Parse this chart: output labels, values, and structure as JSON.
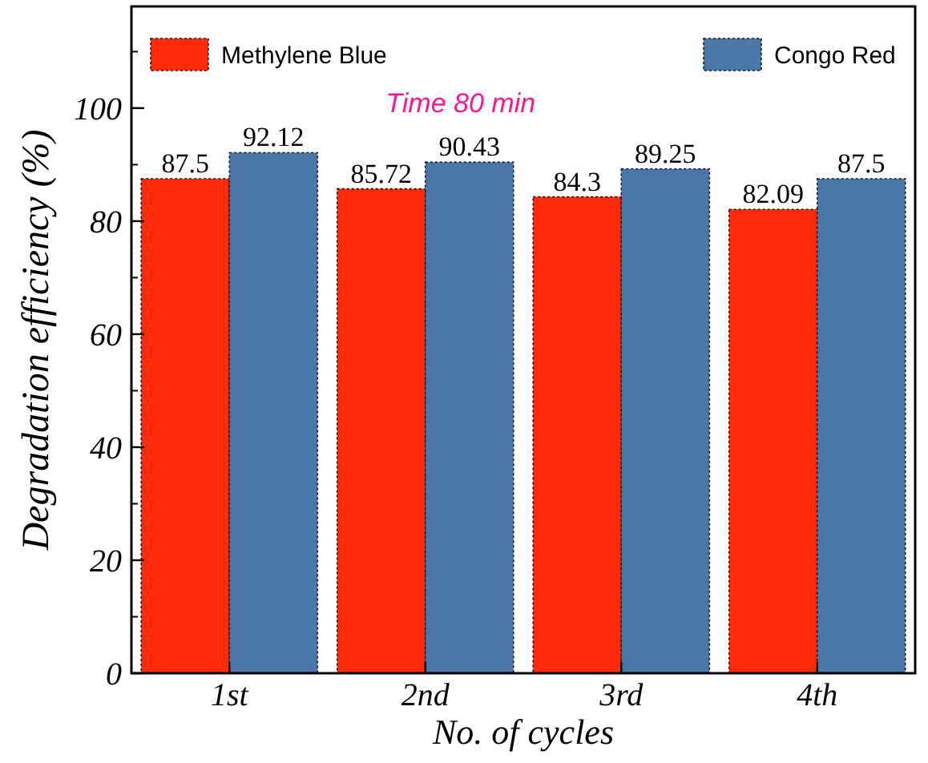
{
  "chart_data": {
    "type": "bar",
    "xlabel": "No. of cycles",
    "ylabel": "Degradation efficiency (%)",
    "categories": [
      "1st",
      "2nd",
      "3rd",
      "4th"
    ],
    "series": [
      {
        "name": "Methylene Blue",
        "color": "#ff2a0a",
        "values": [
          87.5,
          85.72,
          84.3,
          82.09
        ]
      },
      {
        "name": "Congo Red",
        "color": "#4a76a8",
        "values": [
          92.12,
          90.43,
          89.25,
          87.5
        ]
      }
    ],
    "ylim": [
      0,
      118
    ],
    "yticks": [
      0,
      20,
      40,
      60,
      80,
      100
    ],
    "data_labels": true,
    "legend": "top",
    "annotations": [
      "Time 80 min"
    ]
  }
}
